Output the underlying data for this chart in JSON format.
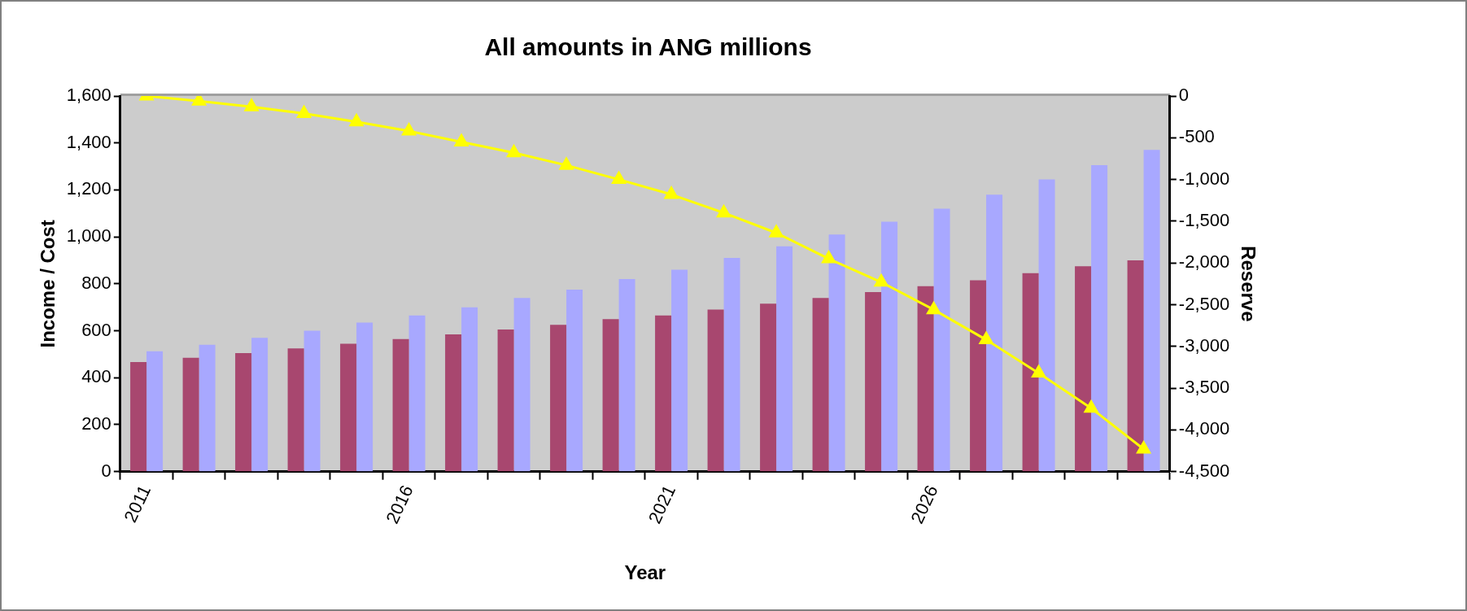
{
  "chart_data": {
    "type": "bar",
    "title": "All amounts in ANG millions",
    "xlabel": "Year",
    "ylabel": "Income / Cost",
    "y2label": "Reserve",
    "categories": [
      "2011",
      null,
      null,
      null,
      null,
      "2016",
      null,
      null,
      null,
      null,
      "2021",
      null,
      null,
      null,
      null,
      "2026",
      null,
      null,
      null,
      null
    ],
    "series": [
      {
        "color": "#a8476f",
        "values": [
          467,
          485,
          505,
          525,
          545,
          565,
          585,
          605,
          625,
          650,
          665,
          690,
          715,
          740,
          765,
          790,
          815,
          845,
          875,
          900
        ]
      },
      {
        "color": "#a8a8ff",
        "values": [
          513,
          540,
          570,
          600,
          635,
          665,
          700,
          740,
          775,
          820,
          860,
          910,
          960,
          1010,
          1065,
          1120,
          1180,
          1245,
          1305,
          1370
        ]
      },
      {
        "type": "line",
        "axis": "y2",
        "color": "#ffff00",
        "marker": "triangle",
        "values": [
          0,
          -60,
          -130,
          -210,
          -310,
          -420,
          -550,
          -680,
          -830,
          -1000,
          -1180,
          -1400,
          -1640,
          -1950,
          -2230,
          -2560,
          -2920,
          -3320,
          -3740,
          -4230
        ]
      }
    ],
    "ylim": [
      0,
      1600
    ],
    "yticks": [
      {
        "value": 0,
        "label": "0"
      },
      {
        "value": 200,
        "label": "200"
      },
      {
        "value": 400,
        "label": "400"
      },
      {
        "value": 600,
        "label": "600"
      },
      {
        "value": 800,
        "label": "800"
      },
      {
        "value": 1000,
        "label": "1,000"
      },
      {
        "value": 1200,
        "label": "1,200"
      },
      {
        "value": 1400,
        "label": "1,400"
      },
      {
        "value": 1600,
        "label": "1,600"
      }
    ],
    "y2lim": [
      -4500,
      0
    ],
    "y2ticks": [
      {
        "value": -4500,
        "label": "-4,500"
      },
      {
        "value": -4000,
        "label": "-4,000"
      },
      {
        "value": -3500,
        "label": "-3,500"
      },
      {
        "value": -3000,
        "label": "-3,000"
      },
      {
        "value": -2500,
        "label": "-2,500"
      },
      {
        "value": -2000,
        "label": "-2,000"
      },
      {
        "value": -1500,
        "label": "-1,500"
      },
      {
        "value": -1000,
        "label": "-1,000"
      },
      {
        "value": -500,
        "label": "-500"
      },
      {
        "value": 0,
        "label": "0"
      }
    ],
    "grid": false,
    "legend": false
  }
}
